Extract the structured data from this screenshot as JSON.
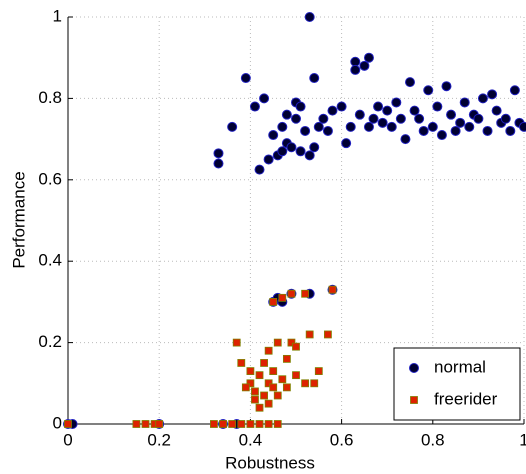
{
  "chart_data": {
    "type": "scatter",
    "x_label": "Robustness",
    "y_label": "Performance",
    "xlim": [
      0,
      1
    ],
    "ylim": [
      0,
      1
    ],
    "xticks": [
      0,
      0.2,
      0.4,
      0.6,
      0.8,
      1
    ],
    "yticks": [
      0,
      0.2,
      0.4,
      0.6,
      0.8,
      1
    ],
    "grid": true,
    "legend": "lower right",
    "series": [
      {
        "name": "normal",
        "color": "#000033",
        "edge": "#2020c0",
        "marker": "circle",
        "x": [
          0.33,
          0.33,
          0.36,
          0.39,
          0.41,
          0.42,
          0.43,
          0.44,
          0.45,
          0.46,
          0.47,
          0.47,
          0.48,
          0.48,
          0.49,
          0.5,
          0.5,
          0.51,
          0.51,
          0.52,
          0.53,
          0.53,
          0.54,
          0.54,
          0.55,
          0.56,
          0.57,
          0.58,
          0.6,
          0.61,
          0.62,
          0.63,
          0.63,
          0.64,
          0.65,
          0.66,
          0.66,
          0.67,
          0.68,
          0.69,
          0.7,
          0.71,
          0.72,
          0.73,
          0.74,
          0.75,
          0.76,
          0.77,
          0.78,
          0.79,
          0.8,
          0.81,
          0.82,
          0.83,
          0.84,
          0.85,
          0.86,
          0.87,
          0.88,
          0.89,
          0.9,
          0.91,
          0.92,
          0.93,
          0.94,
          0.95,
          0.96,
          0.97,
          0.98,
          0.99,
          1.0,
          0.45,
          0.46,
          0.47,
          0.49,
          0.53,
          0.58,
          0.0,
          0.01,
          0.2,
          0.34,
          0.37
        ],
        "values": [
          0.665,
          0.64,
          0.73,
          0.85,
          0.78,
          0.625,
          0.8,
          0.65,
          0.71,
          0.66,
          0.73,
          0.67,
          0.76,
          0.69,
          0.68,
          0.79,
          0.75,
          0.78,
          0.67,
          0.72,
          1.0,
          0.66,
          0.68,
          0.85,
          0.73,
          0.75,
          0.72,
          0.77,
          0.78,
          0.69,
          0.73,
          0.89,
          0.87,
          0.76,
          0.88,
          0.9,
          0.73,
          0.75,
          0.78,
          0.74,
          0.77,
          0.73,
          0.79,
          0.75,
          0.7,
          0.84,
          0.77,
          0.75,
          0.72,
          0.82,
          0.73,
          0.78,
          0.71,
          0.83,
          0.76,
          0.72,
          0.74,
          0.79,
          0.73,
          0.76,
          0.75,
          0.8,
          0.72,
          0.81,
          0.77,
          0.74,
          0.75,
          0.72,
          0.82,
          0.74,
          0.73,
          0.3,
          0.31,
          0.3,
          0.32,
          0.32,
          0.33,
          0,
          0,
          0,
          0,
          0
        ]
      },
      {
        "name": "freerider",
        "color": "#dd2200",
        "edge": "#808000",
        "marker": "square",
        "x": [
          0.0,
          0.15,
          0.17,
          0.19,
          0.2,
          0.32,
          0.34,
          0.36,
          0.38,
          0.4,
          0.42,
          0.44,
          0.46,
          0.4,
          0.41,
          0.41,
          0.42,
          0.43,
          0.43,
          0.44,
          0.44,
          0.45,
          0.45,
          0.46,
          0.46,
          0.47,
          0.48,
          0.49,
          0.5,
          0.52,
          0.53,
          0.55,
          0.57,
          0.38,
          0.39,
          0.42,
          0.45,
          0.47,
          0.49,
          0.52,
          0.58,
          0.4,
          0.44,
          0.48,
          0.5,
          0.54,
          0.37
        ],
        "values": [
          0,
          0,
          0,
          0,
          0,
          0,
          0,
          0,
          0,
          0,
          0,
          0,
          0,
          0.1,
          0.08,
          0.06,
          0.12,
          0.07,
          0.15,
          0.1,
          0.18,
          0.09,
          0.13,
          0.2,
          0.07,
          0.11,
          0.16,
          0.2,
          0.12,
          0.1,
          0.22,
          0.13,
          0.22,
          0.15,
          0.09,
          0.04,
          0.3,
          0.31,
          0.32,
          0.32,
          0.33,
          0.13,
          0.05,
          0.09,
          0.19,
          0.1,
          0.2
        ]
      }
    ]
  }
}
